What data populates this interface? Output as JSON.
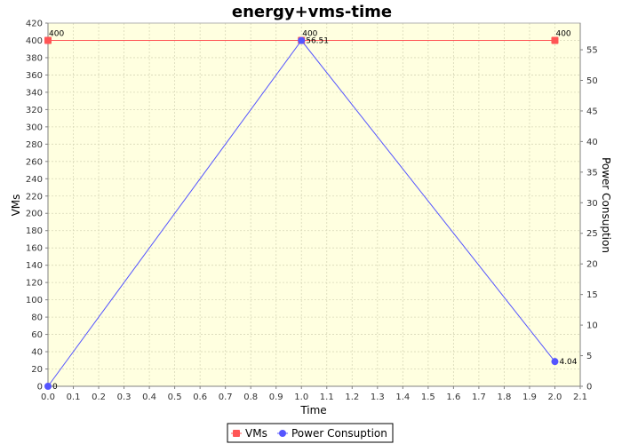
{
  "chart_data": {
    "type": "line",
    "title": "energy+vms-time",
    "xlabel": "Time",
    "ylabel": "VMs",
    "y2label": "Power Consuption",
    "xlim": [
      0.0,
      2.1
    ],
    "ylim": [
      0,
      420
    ],
    "y2lim": [
      0,
      59.36
    ],
    "xticks": [
      "0.0",
      "0.1",
      "0.2",
      "0.3",
      "0.4",
      "0.5",
      "0.6",
      "0.7",
      "0.8",
      "0.9",
      "1.0",
      "1.1",
      "1.2",
      "1.3",
      "1.4",
      "1.5",
      "1.6",
      "1.7",
      "1.8",
      "1.9",
      "2.0",
      "2.1"
    ],
    "yticks": [
      "0",
      "20",
      "40",
      "60",
      "80",
      "100",
      "120",
      "140",
      "160",
      "180",
      "200",
      "220",
      "240",
      "260",
      "280",
      "300",
      "320",
      "340",
      "360",
      "380",
      "400",
      "420"
    ],
    "y2ticks": [
      "0",
      "5",
      "10",
      "15",
      "20",
      "25",
      "30",
      "35",
      "40",
      "45",
      "50",
      "55"
    ],
    "grid": true,
    "legend_position": "bottom",
    "plot_background": "#ffffe0",
    "series": [
      {
        "name": "VMs",
        "axis": "left",
        "color": "#ff5555",
        "x": [
          0.0,
          1.0,
          2.0
        ],
        "y": [
          400,
          400,
          400
        ],
        "labels": [
          "400",
          "400",
          "400"
        ]
      },
      {
        "name": "Power Consuption",
        "axis": "right",
        "color": "#5555ff",
        "x": [
          0.0,
          1.0,
          2.0
        ],
        "y": [
          0,
          56.51,
          4.04
        ],
        "labels": [
          "0",
          "56.51",
          "4.04"
        ]
      }
    ]
  }
}
